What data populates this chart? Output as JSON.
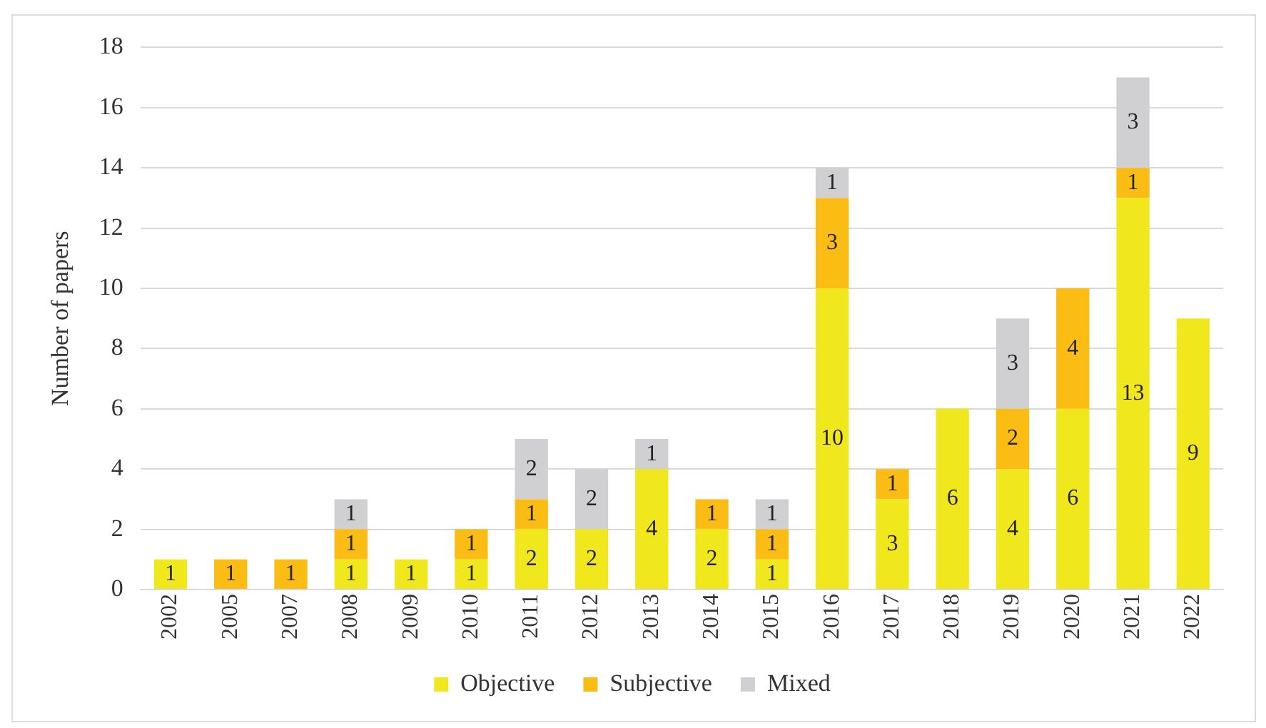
{
  "chart_data": {
    "type": "bar",
    "stacked": true,
    "ylabel": "Number of papers",
    "categories": [
      "2002",
      "2005",
      "2007",
      "2008",
      "2009",
      "2010",
      "2011",
      "2012",
      "2013",
      "2014",
      "2015",
      "2016",
      "2017",
      "2018",
      "2019",
      "2020",
      "2021",
      "2022"
    ],
    "series": [
      {
        "name": "Objective",
        "color": "#f0e81c",
        "values": [
          1,
          null,
          null,
          1,
          1,
          1,
          2,
          2,
          4,
          2,
          1,
          10,
          3,
          6,
          4,
          6,
          13,
          9
        ]
      },
      {
        "name": "Subjective",
        "color": "#fbbc14",
        "values": [
          null,
          1,
          1,
          1,
          null,
          1,
          1,
          null,
          null,
          1,
          1,
          3,
          1,
          null,
          2,
          4,
          1,
          null
        ]
      },
      {
        "name": "Mixed",
        "color": "#d0d0d2",
        "values": [
          null,
          null,
          null,
          1,
          null,
          null,
          2,
          2,
          1,
          null,
          1,
          1,
          null,
          null,
          3,
          null,
          3,
          null
        ]
      }
    ],
    "ylim": [
      0,
      18
    ],
    "yticks": [
      0,
      2,
      4,
      6,
      8,
      10,
      12,
      14,
      16,
      18
    ],
    "grid": "y",
    "legend": "bottom",
    "data_labels": true
  }
}
